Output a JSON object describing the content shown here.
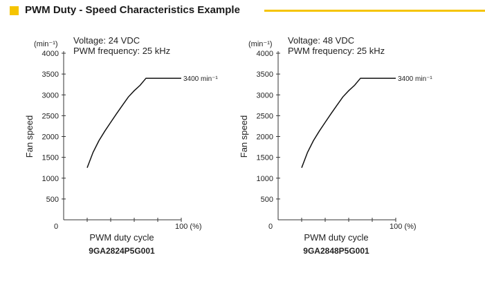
{
  "header": {
    "title": "PWM Duty - Speed Characteristics Example",
    "accent_color": "#f5c400"
  },
  "chart_data": [
    {
      "type": "line",
      "subtitle_lines": [
        "Voltage: 24 VDC",
        "PWM frequency: 25 kHz"
      ],
      "unit": "(min⁻¹)",
      "ylabel": "Fan speed",
      "xlabel": "PWM duty cycle",
      "x_end_label": "100 (%)",
      "origin_label": "0",
      "ylim": [
        0,
        4000
      ],
      "xlim": [
        0,
        100
      ],
      "yticks": [
        500,
        1000,
        1500,
        2000,
        2500,
        3000,
        3500,
        4000
      ],
      "ytick_labels": [
        "500",
        "1000",
        "1500",
        "2000",
        "2500",
        "3000",
        "3500",
        "4000"
      ],
      "xticks": [
        20,
        40,
        60,
        80,
        100
      ],
      "series": [
        {
          "x": [
            20,
            25,
            30,
            35,
            40,
            45,
            50,
            55,
            60,
            65,
            70,
            75,
            80,
            85,
            90,
            95,
            100
          ],
          "y": [
            1250,
            1620,
            1900,
            2130,
            2340,
            2550,
            2750,
            2950,
            3100,
            3230,
            3400,
            3400,
            3400,
            3400,
            3400,
            3400,
            3400
          ]
        }
      ],
      "annotation": {
        "text": "3400 min⁻¹",
        "x": 100,
        "y": 3400
      },
      "model": "9GA2824P5G001"
    },
    {
      "type": "line",
      "subtitle_lines": [
        "Voltage: 48 VDC",
        "PWM frequency: 25 kHz"
      ],
      "unit": "(min⁻¹)",
      "ylabel": "Fan speed",
      "xlabel": "PWM duty cycle",
      "x_end_label": "100 (%)",
      "origin_label": "0",
      "ylim": [
        0,
        4000
      ],
      "xlim": [
        0,
        100
      ],
      "yticks": [
        500,
        1000,
        1500,
        2000,
        2500,
        3000,
        3500,
        4000
      ],
      "ytick_labels": [
        "500",
        "1000",
        "1500",
        "2000",
        "2500",
        "3000",
        "3500",
        "4000"
      ],
      "xticks": [
        20,
        40,
        60,
        80,
        100
      ],
      "series": [
        {
          "x": [
            20,
            25,
            30,
            35,
            40,
            45,
            50,
            55,
            60,
            65,
            70,
            75,
            80,
            85,
            90,
            95,
            100
          ],
          "y": [
            1250,
            1620,
            1900,
            2130,
            2340,
            2550,
            2750,
            2950,
            3100,
            3230,
            3400,
            3400,
            3400,
            3400,
            3400,
            3400,
            3400
          ]
        }
      ],
      "annotation": {
        "text": "3400 min⁻¹",
        "x": 100,
        "y": 3400
      },
      "model": "9GA2848P5G001"
    }
  ]
}
